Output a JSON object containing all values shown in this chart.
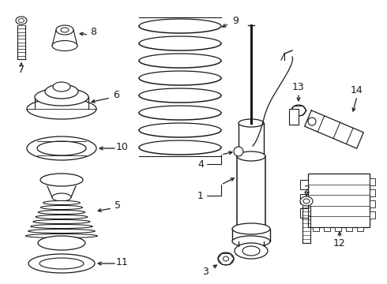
{
  "bg_color": "#ffffff",
  "fig_width": 4.9,
  "fig_height": 3.6,
  "dpi": 100,
  "line_color": "#1a1a1a",
  "line_width": 0.9,
  "label_fontsize": 9.0
}
